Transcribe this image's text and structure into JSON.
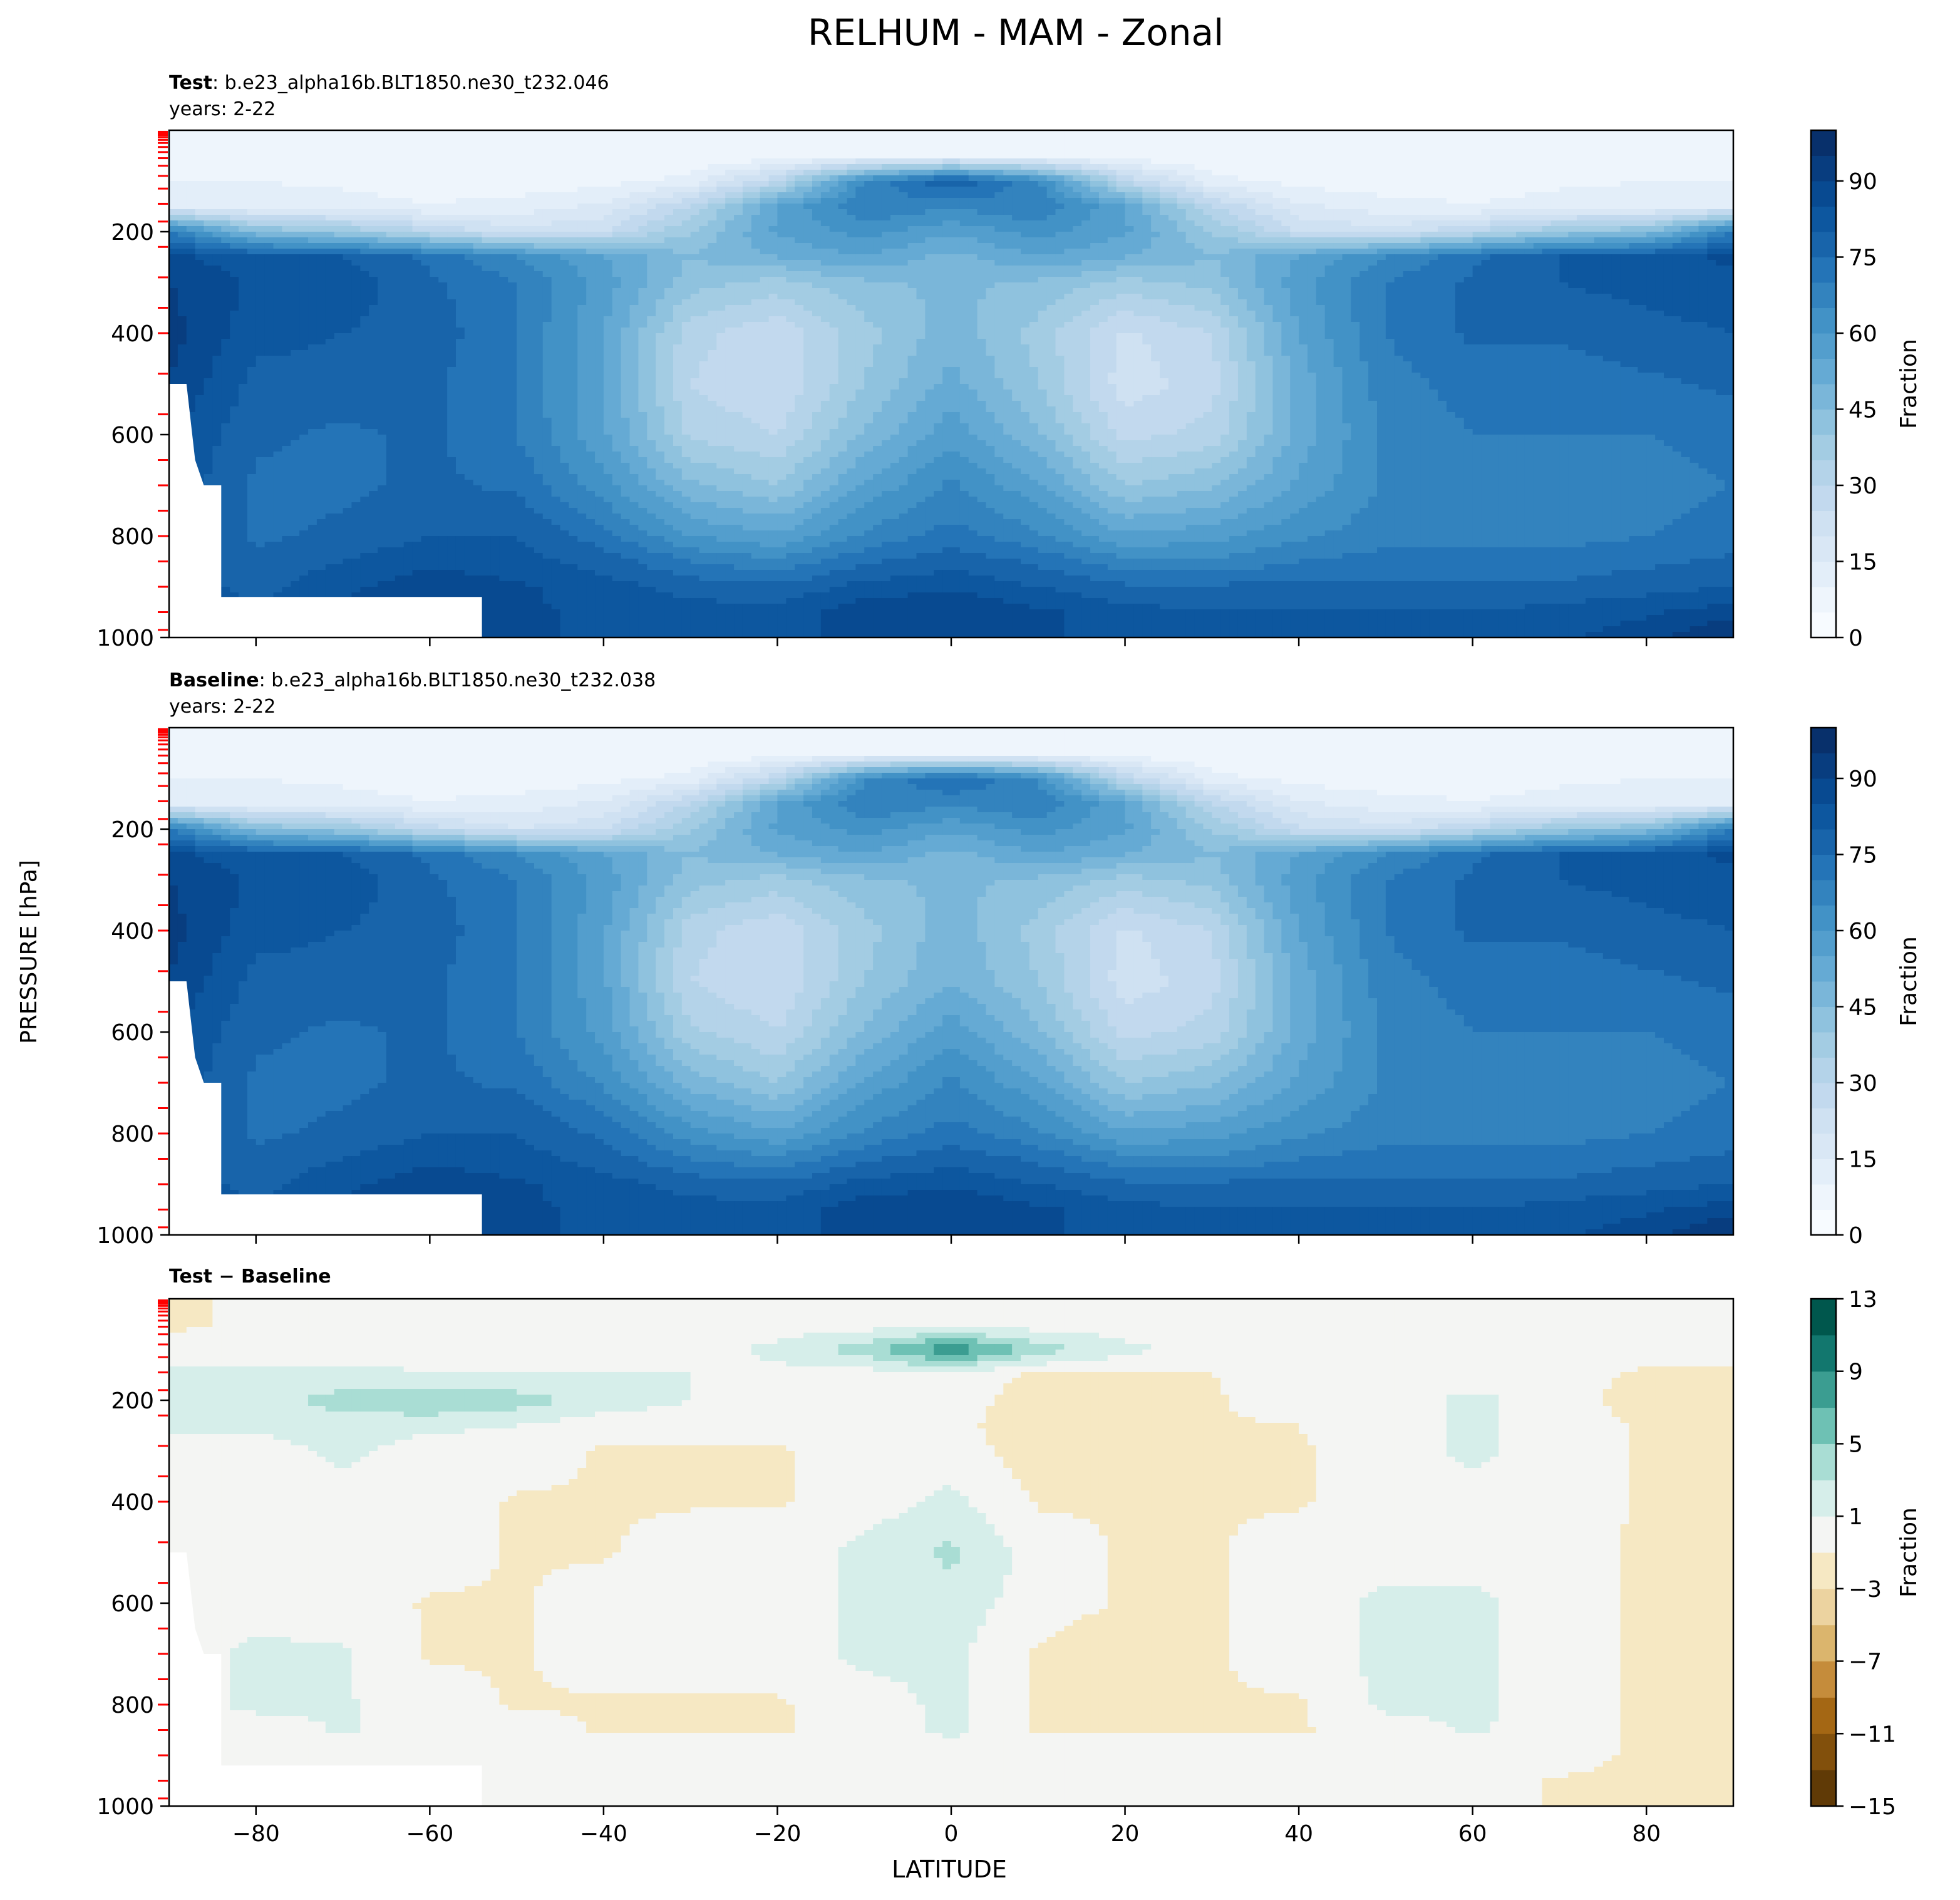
{
  "figure": {
    "title": "RELHUM - MAM - Zonal",
    "ylabel": "PRESSURE [hPa]",
    "xlabel": "LATITUDE"
  },
  "chart_data": [
    {
      "type": "heatmap",
      "panel": "test",
      "title_bold": "Test",
      "title_rest": ": b.e23_alpha16b.BLT1850.ne30_t232.046",
      "years": "years: 2-22",
      "x": [
        -90,
        -80,
        -70,
        -60,
        -50,
        -40,
        -30,
        -20,
        -10,
        0,
        10,
        20,
        30,
        40,
        50,
        60,
        70,
        80,
        90
      ],
      "y": [
        50,
        100,
        150,
        200,
        250,
        300,
        400,
        500,
        600,
        700,
        800,
        850,
        900,
        950,
        1000
      ],
      "z": [
        [
          8,
          8,
          8,
          6,
          5,
          5,
          5,
          6,
          8,
          10,
          8,
          6,
          5,
          5,
          5,
          6,
          8,
          8,
          8
        ],
        [
          10,
          10,
          9,
          8,
          7,
          8,
          12,
          30,
          65,
          80,
          65,
          30,
          12,
          8,
          7,
          8,
          9,
          10,
          10
        ],
        [
          15,
          12,
          12,
          10,
          12,
          16,
          30,
          55,
          70,
          66,
          70,
          55,
          30,
          16,
          12,
          10,
          12,
          12,
          15
        ],
        [
          70,
          45,
          40,
          30,
          22,
          25,
          40,
          56,
          62,
          56,
          62,
          56,
          40,
          25,
          22,
          30,
          40,
          45,
          70
        ],
        [
          86,
          82,
          80,
          74,
          65,
          55,
          45,
          50,
          55,
          48,
          55,
          50,
          45,
          55,
          65,
          74,
          80,
          82,
          86
        ],
        [
          90,
          84,
          83,
          76,
          70,
          58,
          42,
          38,
          44,
          46,
          44,
          38,
          42,
          58,
          70,
          76,
          80,
          82,
          84
        ],
        [
          92,
          82,
          80,
          78,
          70,
          55,
          32,
          26,
          38,
          48,
          38,
          24,
          30,
          55,
          70,
          76,
          76,
          78,
          80
        ],
        [
          90,
          78,
          78,
          76,
          70,
          55,
          30,
          25,
          40,
          52,
          40,
          22,
          28,
          52,
          68,
          72,
          72,
          74,
          76
        ],
        [
          86,
          76,
          74,
          76,
          70,
          56,
          34,
          30,
          46,
          58,
          46,
          28,
          32,
          52,
          66,
          70,
          70,
          70,
          72
        ],
        [
          84,
          74,
          74,
          76,
          74,
          62,
          46,
          40,
          56,
          66,
          56,
          40,
          44,
          56,
          66,
          68,
          68,
          68,
          70
        ],
        [
          82,
          74,
          76,
          80,
          80,
          72,
          60,
          56,
          66,
          72,
          66,
          56,
          58,
          64,
          68,
          68,
          68,
          70,
          72
        ],
        [
          82,
          76,
          80,
          84,
          82,
          78,
          70,
          66,
          74,
          78,
          74,
          66,
          66,
          70,
          72,
          72,
          72,
          74,
          76
        ],
        [
          84,
          78,
          84,
          88,
          86,
          82,
          78,
          76,
          82,
          84,
          80,
          76,
          76,
          76,
          76,
          76,
          76,
          78,
          80
        ],
        [
          84,
          80,
          86,
          90,
          86,
          84,
          82,
          82,
          88,
          90,
          86,
          82,
          80,
          80,
          80,
          80,
          82,
          84,
          88
        ],
        [
          84,
          80,
          86,
          90,
          86,
          84,
          82,
          82,
          88,
          88,
          86,
          82,
          80,
          80,
          80,
          82,
          84,
          88,
          96
        ]
      ],
      "mask_note": "no data below surface near Antarctica",
      "colorbar_label": "Fraction",
      "colorbar_ticks": [
        0,
        15,
        30,
        45,
        60,
        75,
        90
      ],
      "levels": [
        0,
        5,
        10,
        15,
        20,
        25,
        30,
        35,
        40,
        45,
        50,
        55,
        60,
        65,
        70,
        75,
        80,
        85,
        90,
        95,
        100
      ],
      "colormap": "Blues"
    },
    {
      "type": "heatmap",
      "panel": "baseline",
      "title_bold": "Baseline",
      "title_rest": ": b.e23_alpha16b.BLT1850.ne30_t232.038",
      "years": "years: 2-22",
      "x": [
        -90,
        -80,
        -70,
        -60,
        -50,
        -40,
        -30,
        -20,
        -10,
        0,
        10,
        20,
        30,
        40,
        50,
        60,
        70,
        80,
        90
      ],
      "y": [
        50,
        100,
        150,
        200,
        250,
        300,
        400,
        500,
        600,
        700,
        800,
        850,
        900,
        950,
        1000
      ],
      "z": [
        [
          8,
          8,
          8,
          6,
          5,
          5,
          5,
          6,
          8,
          10,
          8,
          6,
          5,
          5,
          5,
          6,
          8,
          8,
          8
        ],
        [
          10,
          10,
          9,
          8,
          7,
          8,
          12,
          30,
          64,
          76,
          64,
          30,
          12,
          8,
          7,
          8,
          9,
          10,
          10
        ],
        [
          15,
          12,
          12,
          10,
          12,
          16,
          30,
          55,
          70,
          66,
          70,
          55,
          30,
          16,
          12,
          10,
          12,
          12,
          15
        ],
        [
          70,
          45,
          40,
          28,
          20,
          24,
          40,
          56,
          62,
          56,
          62,
          56,
          40,
          26,
          22,
          30,
          40,
          45,
          70
        ],
        [
          86,
          82,
          80,
          74,
          65,
          55,
          45,
          50,
          55,
          48,
          55,
          50,
          45,
          55,
          65,
          74,
          80,
          82,
          86
        ],
        [
          90,
          84,
          83,
          76,
          70,
          58,
          42,
          38,
          44,
          46,
          44,
          38,
          42,
          58,
          70,
          76,
          80,
          82,
          84
        ],
        [
          92,
          82,
          80,
          78,
          70,
          56,
          32,
          26,
          38,
          48,
          38,
          24,
          30,
          55,
          70,
          76,
          76,
          78,
          80
        ],
        [
          90,
          78,
          78,
          76,
          70,
          56,
          30,
          25,
          40,
          50,
          40,
          22,
          28,
          52,
          68,
          72,
          72,
          74,
          76
        ],
        [
          86,
          76,
          74,
          76,
          70,
          58,
          36,
          30,
          46,
          58,
          46,
          28,
          32,
          52,
          66,
          70,
          70,
          70,
          72
        ],
        [
          84,
          74,
          74,
          76,
          74,
          64,
          48,
          40,
          56,
          66,
          56,
          40,
          44,
          56,
          66,
          68,
          68,
          68,
          70
        ],
        [
          82,
          74,
          76,
          80,
          80,
          74,
          62,
          56,
          66,
          72,
          66,
          56,
          58,
          64,
          68,
          68,
          68,
          70,
          72
        ],
        [
          82,
          76,
          80,
          84,
          82,
          78,
          70,
          66,
          74,
          78,
          74,
          66,
          66,
          70,
          72,
          72,
          72,
          74,
          76
        ],
        [
          84,
          78,
          84,
          88,
          86,
          82,
          78,
          76,
          82,
          84,
          80,
          76,
          76,
          76,
          76,
          76,
          76,
          78,
          80
        ],
        [
          84,
          80,
          86,
          90,
          86,
          84,
          82,
          82,
          88,
          90,
          86,
          82,
          80,
          80,
          80,
          80,
          82,
          84,
          88
        ],
        [
          84,
          80,
          86,
          90,
          86,
          84,
          82,
          82,
          88,
          88,
          86,
          82,
          80,
          80,
          80,
          82,
          84,
          88,
          96
        ]
      ],
      "mask_note": "no data below surface near Antarctica",
      "colorbar_label": "Fraction",
      "colorbar_ticks": [
        0,
        15,
        30,
        45,
        60,
        75,
        90
      ],
      "levels": [
        0,
        5,
        10,
        15,
        20,
        25,
        30,
        35,
        40,
        45,
        50,
        55,
        60,
        65,
        70,
        75,
        80,
        85,
        90,
        95,
        100
      ],
      "colormap": "Blues"
    },
    {
      "type": "heatmap",
      "panel": "difference",
      "title_bold": "Test − Baseline",
      "x": [
        -90,
        -80,
        -70,
        -60,
        -50,
        -40,
        -30,
        -20,
        -10,
        0,
        10,
        20,
        30,
        40,
        50,
        60,
        70,
        80,
        90
      ],
      "y": [
        50,
        100,
        150,
        200,
        250,
        300,
        400,
        500,
        600,
        700,
        800,
        850,
        900,
        950,
        1000
      ],
      "z": [
        [
          -1.5,
          -0.5,
          0,
          0,
          0,
          0,
          0,
          0,
          0,
          0,
          0,
          0,
          0,
          0,
          0,
          0,
          0,
          0,
          0
        ],
        [
          0,
          0,
          0,
          0,
          0,
          0,
          0,
          1.5,
          4,
          9,
          4,
          1.5,
          0,
          0,
          0,
          0,
          0,
          0,
          0
        ],
        [
          1.5,
          1.5,
          1.5,
          1.2,
          1,
          1,
          1,
          0.5,
          0,
          0,
          -1.2,
          -1.2,
          -1,
          -0.5,
          0,
          0,
          0,
          -1.5,
          -1.5
        ],
        [
          1.5,
          2,
          4,
          5,
          4,
          2,
          1,
          0,
          0,
          0,
          -2,
          -2,
          -1.2,
          0,
          0,
          1.5,
          0,
          -2,
          -3
        ],
        [
          1.5,
          1.5,
          2,
          1.5,
          1,
          0,
          0,
          0,
          0,
          0,
          -3,
          -3,
          -1.2,
          -1,
          0,
          1.5,
          0,
          -1.2,
          -3
        ],
        [
          0,
          0,
          1.5,
          0,
          0,
          -1.2,
          -1.2,
          -1.2,
          0,
          0,
          -2,
          -1.5,
          -1.2,
          -1.2,
          0,
          1.5,
          0,
          -1.2,
          -1.5
        ],
        [
          0,
          0,
          0,
          0,
          -1.2,
          -1.2,
          -1.2,
          -1.2,
          0,
          1.5,
          -1.2,
          -1.2,
          -1.2,
          -1.2,
          0,
          0,
          0,
          -1.2,
          -1.5
        ],
        [
          0,
          0,
          0,
          0,
          -1.2,
          -1.2,
          0,
          0,
          1.5,
          3.5,
          0,
          -1.2,
          -1.2,
          0,
          0,
          0,
          0,
          -1.5,
          -1.5
        ],
        [
          0,
          0,
          0,
          -1.2,
          -1.2,
          0,
          0,
          0,
          1.5,
          2,
          0,
          -1.2,
          -1.2,
          0,
          1.5,
          1.5,
          0,
          -1.5,
          -2
        ],
        [
          0,
          1.5,
          1.2,
          -1.2,
          -1.2,
          0,
          0,
          0,
          1.5,
          1.5,
          -1.2,
          -2.5,
          -1.2,
          0,
          1.5,
          1.5,
          0,
          -1.5,
          -2.5
        ],
        [
          0,
          1.5,
          1.2,
          0,
          -1.2,
          -1.2,
          -1.2,
          -1.2,
          0,
          1.5,
          -1.2,
          -1.2,
          -1.2,
          -1.2,
          1.5,
          1.5,
          0,
          -1.5,
          -2.5
        ],
        [
          0,
          0,
          1.2,
          0,
          0,
          -1.2,
          -1.2,
          -1.2,
          0,
          1.5,
          -1.2,
          -1.2,
          -1.2,
          -1.2,
          0,
          1.2,
          0,
          -1.5,
          -2.5
        ],
        [
          0,
          0,
          0,
          0,
          0,
          0,
          0,
          0,
          0,
          0,
          0,
          0,
          0,
          0,
          0,
          0,
          0,
          -1.5,
          -2.5
        ],
        [
          0,
          0,
          0,
          0,
          0,
          0,
          0,
          0,
          0,
          0,
          0,
          0,
          0,
          0,
          0,
          0,
          -1.2,
          -1.5,
          -1.5
        ],
        [
          0,
          0,
          0,
          0,
          0,
          0,
          0,
          0,
          0,
          0,
          0,
          0,
          0,
          0,
          0,
          0,
          -1.2,
          -1.2,
          -1.2
        ]
      ],
      "mask_note": "no data below surface near Antarctica",
      "colorbar_label": "Fraction",
      "colorbar_ticks": [
        -15,
        -11,
        -7,
        -3,
        1,
        5,
        9,
        13
      ],
      "levels": [
        -15,
        -13,
        -11,
        -9,
        -7,
        -5,
        -3,
        -1,
        1,
        3,
        5,
        7,
        9,
        11,
        13
      ],
      "colormap": "BrBG"
    }
  ],
  "axes": {
    "xlim": [
      -90,
      90
    ],
    "ylim": [
      0,
      1000
    ],
    "y_inverted": true,
    "xticks": [
      -80,
      -60,
      -40,
      -20,
      0,
      20,
      40,
      60,
      80
    ],
    "xtick_labels": [
      "−80",
      "−60",
      "−40",
      "−20",
      "0",
      "20",
      "40",
      "60",
      "80"
    ],
    "yticks": [
      200,
      400,
      600,
      800,
      1000
    ],
    "ytick_labels": [
      "200",
      "400",
      "600",
      "800",
      "1000"
    ],
    "model_level_marks_hpa": [
      3,
      5,
      7,
      10,
      14,
      19,
      25,
      33,
      43,
      55,
      70,
      90,
      115,
      145,
      180,
      230,
      290,
      350,
      400,
      480,
      560,
      650,
      700,
      750,
      800,
      850,
      900,
      950,
      985
    ],
    "model_level_mark_color": "#ff0000",
    "surface_mask": {
      "lat_edge": [
        -90,
        -88,
        -87,
        -86,
        -84,
        -84,
        -54,
        -54
      ],
      "p_top": [
        500,
        500,
        650,
        700,
        700,
        920,
        920,
        1000
      ]
    }
  },
  "colors": {
    "blues": [
      "#f7fbff",
      "#eef5fc",
      "#e3eef9",
      "#d9e7f5",
      "#cfe1f2",
      "#c2d9ee",
      "#b4d3e9",
      "#a3cce3",
      "#8fc2de",
      "#7ab6d9",
      "#65aad4",
      "#539ecd",
      "#4292c6",
      "#3383be",
      "#2474b7",
      "#1864aa",
      "#0d579f",
      "#084a91",
      "#083d7f",
      "#08306b"
    ],
    "brbg": [
      "#603a06",
      "#82500c",
      "#a46714",
      "#c58c3b",
      "#dbb56d",
      "#ecd3a0",
      "#f6e8c3",
      "#f4f5f3",
      "#d6eeea",
      "#a9ddd4",
      "#6ec1b4",
      "#3b9d91",
      "#12776e",
      "#00574d"
    ]
  }
}
